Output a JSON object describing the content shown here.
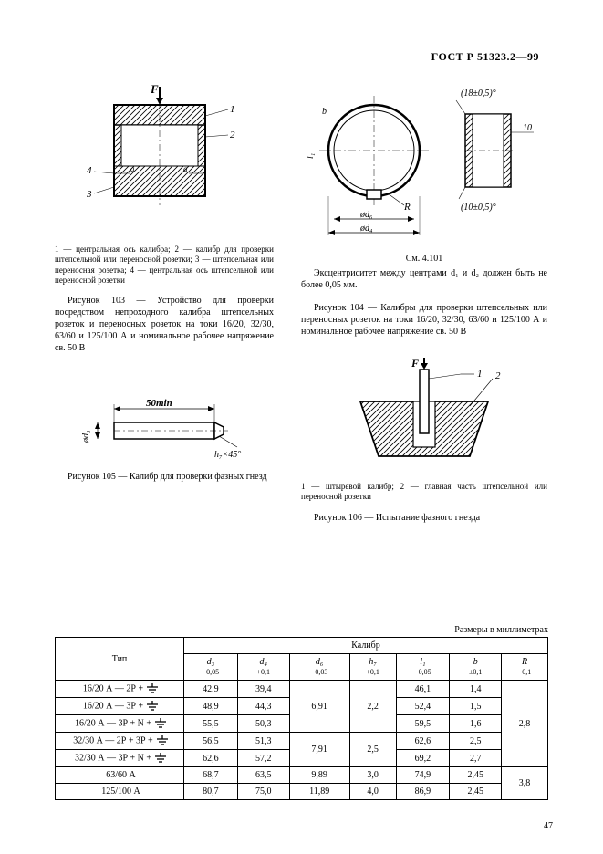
{
  "header": "ГОСТ Р 51323.2—99",
  "pagenum": "47",
  "fig103": {
    "legend": "1 — центральная ось калибра; 2 — калибр для проверки штепсельной или переносной розетки; 3 — штепсельная или переносная розетка; 4 — центральная ось штепсельной или переносной розетки",
    "title": "Рисунок 103 — Устройство для проверки посредством непроходного калибра штепсельных розеток и переносных розеток на токи 16/20, 32/30, 63/60 и 125/100 А и номинальное рабочее напряжение св. 50 В"
  },
  "fig104": {
    "note_ref": "См. 4.101",
    "note": "Эксцентриситет между центрами d₁ и d₂ должен быть не более 0,05 мм.",
    "title": "Рисунок 104 — Калибры для проверки штепсельных или переносных розеток на токи 16/20, 32/30, 63/60 и 125/100 А и номинальное рабочее напряжение св. 50 В"
  },
  "fig105": {
    "dim": "50min",
    "chamfer": "h₇×45°",
    "title": "Рисунок 105 — Калибр для проверки фазных гнезд"
  },
  "fig106": {
    "legend": "1 — штыревой калибр; 2 — главная часть штепсельной или переносной розетки",
    "title": "Рисунок 106 — Испытание фазного гнезда"
  },
  "table": {
    "units": "Размеры в миллиметрах",
    "head_type": "Тип",
    "head_group": "Калибр",
    "cols": [
      {
        "sym": "d₃",
        "tol": "−0,05"
      },
      {
        "sym": "d₄",
        "tol": "+0,1"
      },
      {
        "sym": "d₆",
        "tol": "−0,03"
      },
      {
        "sym": "h₇",
        "tol": "+0,1"
      },
      {
        "sym": "l₁",
        "tol": "−0,05"
      },
      {
        "sym": "b",
        "tol": "±0,1"
      },
      {
        "sym": "R",
        "tol": "−0,1"
      }
    ],
    "rows": [
      {
        "type": "16/20 А — 2Р +",
        "gnd": true,
        "d3": "42,9",
        "d4": "39,4",
        "l1": "46,1",
        "b": "1,4"
      },
      {
        "type": "16/20 А — 3Р +",
        "gnd": true,
        "d3": "48,9",
        "d4": "44,3",
        "l1": "52,4",
        "b": "1,5"
      },
      {
        "type": "16/20 А — 3Р + N +",
        "gnd": true,
        "d3": "55,5",
        "d4": "50,3",
        "l1": "59,5",
        "b": "1,6"
      },
      {
        "type": "32/30 А — 2Р + 3Р +",
        "gnd": true,
        "d3": "56,5",
        "d4": "51,3",
        "l1": "62,6",
        "b": "2,5"
      },
      {
        "type": "32/30 А — 3Р + N +",
        "gnd": true,
        "d3": "62,6",
        "d4": "57,2",
        "l1": "69,2",
        "b": "2,7"
      },
      {
        "type": "63/60 А",
        "gnd": false,
        "d3": "68,7",
        "d4": "63,5",
        "d6": "9,89",
        "h7": "3,0",
        "l1": "74,9",
        "b": "2,45",
        "R": "3,8"
      },
      {
        "type": "125/100 А",
        "gnd": false,
        "d3": "80,7",
        "d4": "75,0",
        "d6": "11,89",
        "h7": "4,0",
        "l1": "86,9",
        "b": "2,45",
        "R": ""
      }
    ],
    "merge1": {
      "d6": "6,91",
      "h7": "2,2",
      "R": "2,8"
    },
    "merge2": {
      "d6": "7,91",
      "h7": "2,5"
    }
  }
}
